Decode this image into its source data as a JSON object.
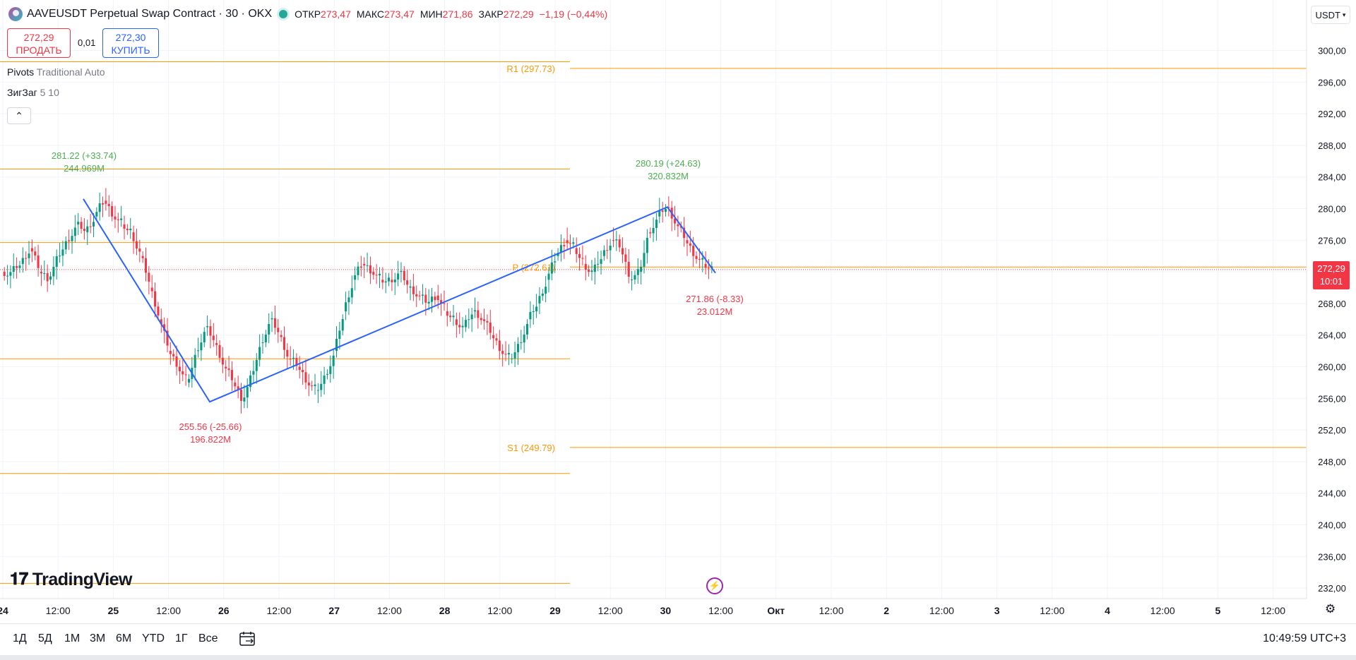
{
  "header": {
    "symbol_title": "AAVEUSDT Perpetual Swap Contract · 30 · OKX",
    "open_label": "ОТКР",
    "open_value": "273,47",
    "high_label": "МАКС",
    "high_value": "273,47",
    "low_label": "МИН",
    "low_value": "271,86",
    "close_label": "ЗАКР",
    "close_value": "272,29",
    "change": "−1,19 (−0,44%)"
  },
  "trade": {
    "sell_price": "272,29",
    "sell_label": "ПРОДАТЬ",
    "spread": "0,01",
    "buy_price": "272,30",
    "buy_label": "КУПИТЬ"
  },
  "indicators": {
    "pivots_name": "Pivots",
    "pivots_params": "Traditional Auto",
    "zigzag_name": "ЗигЗаг",
    "zigzag_params": "5 10"
  },
  "currency": "USDT",
  "price_axis": {
    "ticks": [
      "300,00",
      "296,00",
      "292,00",
      "288,00",
      "284,00",
      "280,00",
      "276,00",
      "272,00",
      "268,00",
      "264,00",
      "260,00",
      "256,00",
      "252,00",
      "248,00",
      "244,00",
      "240,00",
      "236,00",
      "232,00"
    ],
    "current_price": "272,29",
    "countdown": "10:01"
  },
  "time_axis": {
    "ticks": [
      "24",
      "12:00",
      "25",
      "12:00",
      "26",
      "12:00",
      "27",
      "12:00",
      "28",
      "12:00",
      "29",
      "12:00",
      "30",
      "12:00",
      "Окт",
      "12:00",
      "2",
      "12:00",
      "3",
      "12:00",
      "4",
      "12:00",
      "5",
      "12:00"
    ]
  },
  "pivot_labels": {
    "r1": "R1 (297.73)",
    "p": "P (272.61)",
    "s1": "S1 (249.79)"
  },
  "zigzag_labels": [
    {
      "price": "281.22 (+33.74)",
      "volume": "244.969M"
    },
    {
      "price": "255.56 (-25.66)",
      "volume": "196.822M"
    },
    {
      "price": "280.19 (+24.63)",
      "volume": "320.832M"
    },
    {
      "price": "271.86 (-8.33)",
      "volume": "23.012M"
    }
  ],
  "chart_data": {
    "type": "candlestick",
    "symbol": "AAVEUSDT",
    "interval": "30",
    "ylim": [
      230,
      302
    ],
    "price_series_close": [
      272,
      273,
      275,
      272,
      271,
      274,
      276,
      278,
      277,
      279,
      281,
      279,
      278,
      277,
      274,
      270,
      266,
      262,
      260,
      258,
      262,
      265,
      263,
      260,
      258,
      255.6,
      259,
      263,
      266,
      264,
      261,
      260,
      258,
      257,
      259,
      262,
      267,
      271,
      273,
      272,
      271,
      271,
      272,
      270,
      269,
      268,
      269,
      267,
      266,
      265,
      267,
      266,
      264,
      262,
      261,
      263,
      266,
      268,
      271,
      274,
      276,
      275,
      273,
      272,
      274,
      276,
      275,
      271,
      272,
      277,
      279,
      280.2,
      278,
      276,
      274,
      273,
      272.3
    ],
    "pivots": {
      "R1": 297.73,
      "P": 272.61,
      "S1": 249.79,
      "prev_R1": 285,
      "prev_P": 275.7,
      "prev_S1": 261,
      "prev_S2": 246.5,
      "prev_S3": 232.6
    },
    "zigzag": [
      {
        "x": "24 14:00",
        "y": 281.22,
        "change": 33.74,
        "volume": "244.969M"
      },
      {
        "x": "25 21:00",
        "y": 255.56,
        "change": -25.66,
        "volume": "196.822M"
      },
      {
        "x": "30 00:00",
        "y": 280.19,
        "change": 24.63,
        "volume": "320.832M"
      },
      {
        "x": "30 10:30",
        "y": 271.86,
        "change": -8.33,
        "volume": "23.012M"
      }
    ],
    "colors": {
      "up": "#089981",
      "down": "#f23645",
      "zigzag": "#2962ff",
      "pivot": "#ff9800"
    }
  },
  "bottom_bar": {
    "ranges": [
      "1Д",
      "5Д",
      "1М",
      "3М",
      "6М",
      "YTD",
      "1Г",
      "Все"
    ],
    "clock": "10:49:59 UTC+3"
  },
  "logo_text": "TradingView"
}
